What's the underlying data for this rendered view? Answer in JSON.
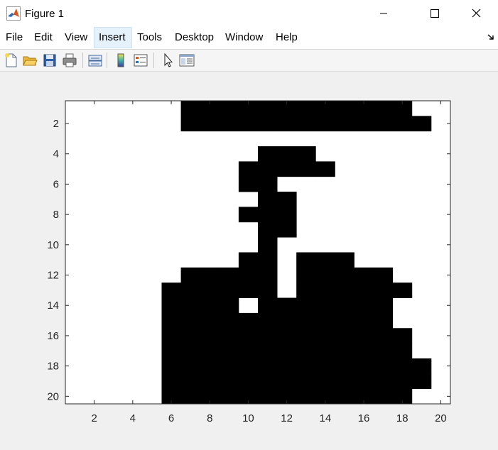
{
  "window": {
    "title": "Figure 1",
    "buttons": [
      "minimize",
      "maximize",
      "close"
    ]
  },
  "menubar": {
    "items": [
      "File",
      "Edit",
      "View",
      "Insert",
      "Tools",
      "Desktop",
      "Window",
      "Help"
    ],
    "active": "Insert"
  },
  "toolbar": {
    "tools": [
      "new-figure-icon",
      "open-file-icon",
      "save-icon",
      "print-icon",
      "link-plot-icon",
      "insert-colorbar-icon",
      "insert-legend-icon",
      "pointer-icon",
      "property-inspector-icon"
    ]
  },
  "chart_data": {
    "type": "heatmap",
    "colormap": "gray",
    "colors": {
      "filled": "#000000",
      "empty": "#ffffff"
    },
    "xlim": [
      0.5,
      20.5
    ],
    "ylim": [
      0.5,
      20.5
    ],
    "y_direction": "reverse",
    "xticks": [
      "2",
      "4",
      "6",
      "8",
      "10",
      "12",
      "14",
      "16",
      "18",
      "20"
    ],
    "yticks": [
      "2",
      "4",
      "6",
      "8",
      "10",
      "12",
      "14",
      "16",
      "18",
      "20"
    ],
    "matrix": [
      [
        0,
        0,
        0,
        0,
        0,
        0,
        1,
        1,
        1,
        1,
        1,
        1,
        1,
        1,
        1,
        1,
        1,
        1,
        0,
        0
      ],
      [
        0,
        0,
        0,
        0,
        0,
        0,
        1,
        1,
        1,
        1,
        1,
        1,
        1,
        1,
        1,
        1,
        1,
        1,
        1,
        0
      ],
      [
        0,
        0,
        0,
        0,
        0,
        0,
        0,
        0,
        0,
        0,
        0,
        0,
        0,
        0,
        0,
        0,
        0,
        0,
        0,
        0
      ],
      [
        0,
        0,
        0,
        0,
        0,
        0,
        0,
        0,
        0,
        0,
        1,
        1,
        1,
        0,
        0,
        0,
        0,
        0,
        0,
        0
      ],
      [
        0,
        0,
        0,
        0,
        0,
        0,
        0,
        0,
        0,
        1,
        1,
        1,
        1,
        1,
        0,
        0,
        0,
        0,
        0,
        0
      ],
      [
        0,
        0,
        0,
        0,
        0,
        0,
        0,
        0,
        0,
        1,
        1,
        0,
        0,
        0,
        0,
        0,
        0,
        0,
        0,
        0
      ],
      [
        0,
        0,
        0,
        0,
        0,
        0,
        0,
        0,
        0,
        0,
        1,
        1,
        0,
        0,
        0,
        0,
        0,
        0,
        0,
        0
      ],
      [
        0,
        0,
        0,
        0,
        0,
        0,
        0,
        0,
        0,
        1,
        1,
        1,
        0,
        0,
        0,
        0,
        0,
        0,
        0,
        0
      ],
      [
        0,
        0,
        0,
        0,
        0,
        0,
        0,
        0,
        0,
        0,
        1,
        1,
        0,
        0,
        0,
        0,
        0,
        0,
        0,
        0
      ],
      [
        0,
        0,
        0,
        0,
        0,
        0,
        0,
        0,
        0,
        0,
        1,
        0,
        0,
        0,
        0,
        0,
        0,
        0,
        0,
        0
      ],
      [
        0,
        0,
        0,
        0,
        0,
        0,
        0,
        0,
        0,
        1,
        1,
        0,
        1,
        1,
        1,
        0,
        0,
        0,
        0,
        0
      ],
      [
        0,
        0,
        0,
        0,
        0,
        0,
        1,
        1,
        1,
        1,
        1,
        0,
        1,
        1,
        1,
        1,
        1,
        0,
        0,
        0
      ],
      [
        0,
        0,
        0,
        0,
        0,
        1,
        1,
        1,
        1,
        1,
        1,
        0,
        1,
        1,
        1,
        1,
        1,
        1,
        0,
        0
      ],
      [
        0,
        0,
        0,
        0,
        0,
        1,
        1,
        1,
        1,
        0,
        1,
        1,
        1,
        1,
        1,
        1,
        1,
        0,
        0,
        0
      ],
      [
        0,
        0,
        0,
        0,
        0,
        1,
        1,
        1,
        1,
        1,
        1,
        1,
        1,
        1,
        1,
        1,
        1,
        0,
        0,
        0
      ],
      [
        0,
        0,
        0,
        0,
        0,
        1,
        1,
        1,
        1,
        1,
        1,
        1,
        1,
        1,
        1,
        1,
        1,
        1,
        0,
        0
      ],
      [
        0,
        0,
        0,
        0,
        0,
        1,
        1,
        1,
        1,
        1,
        1,
        1,
        1,
        1,
        1,
        1,
        1,
        1,
        0,
        0
      ],
      [
        0,
        0,
        0,
        0,
        0,
        1,
        1,
        1,
        1,
        1,
        1,
        1,
        1,
        1,
        1,
        1,
        1,
        1,
        1,
        0
      ],
      [
        0,
        0,
        0,
        0,
        0,
        1,
        1,
        1,
        1,
        1,
        1,
        1,
        1,
        1,
        1,
        1,
        1,
        1,
        1,
        0
      ],
      [
        0,
        0,
        0,
        0,
        0,
        1,
        1,
        1,
        1,
        1,
        1,
        1,
        1,
        1,
        1,
        1,
        1,
        1,
        0,
        0
      ]
    ]
  }
}
